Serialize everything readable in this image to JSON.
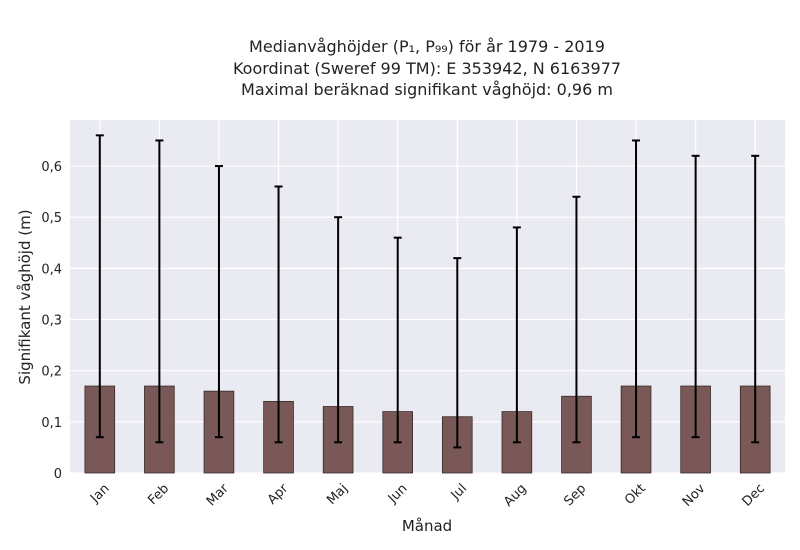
{
  "chart_data": {
    "type": "bar",
    "title_lines": [
      "Medianvåghöjder (P₁, P₉₉) för år 1979 - 2019",
      "Koordinat (Sweref 99 TM): E 353942, N 6163977",
      "Maximal beräknad signifikant våghöjd: 0,96 m"
    ],
    "xlabel": "Månad",
    "ylabel": "Signifikant våghöjd (m)",
    "categories": [
      "Jan",
      "Feb",
      "Mar",
      "Apr",
      "Maj",
      "Jun",
      "Jul",
      "Aug",
      "Sep",
      "Okt",
      "Nov",
      "Dec"
    ],
    "values": [
      0.17,
      0.17,
      0.16,
      0.14,
      0.13,
      0.12,
      0.11,
      0.12,
      0.15,
      0.17,
      0.17,
      0.17
    ],
    "p1": [
      0.07,
      0.06,
      0.07,
      0.06,
      0.06,
      0.06,
      0.05,
      0.06,
      0.06,
      0.07,
      0.07,
      0.06
    ],
    "p99": [
      0.66,
      0.65,
      0.6,
      0.56,
      0.5,
      0.46,
      0.42,
      0.48,
      0.54,
      0.65,
      0.62,
      0.62
    ],
    "ylim": [
      0,
      0.69
    ],
    "yticks": [
      0,
      0.1,
      0.2,
      0.3,
      0.4,
      0.5,
      0.6
    ],
    "ytick_labels": [
      "0",
      "0,1",
      "0,2",
      "0,3",
      "0,4",
      "0,5",
      "0,6"
    ],
    "grid": true,
    "colors": {
      "bar": "#7a5858",
      "bar_edge": "#3a2a2a",
      "errorbar": "#000000",
      "plot_background": "#eaeaf2",
      "grid": "#ffffff"
    }
  }
}
